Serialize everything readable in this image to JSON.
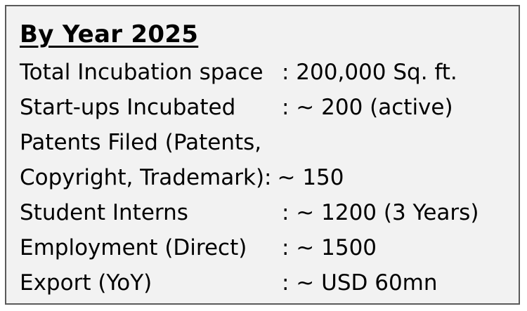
{
  "heading": "By Year 2025",
  "rows": [
    {
      "label": "Total Incubation space",
      "value": ": 200,000 Sq. ft."
    },
    {
      "label": "Start-ups Incubated",
      "value": ": ~ 200 (active)"
    },
    {
      "label": "Patents Filed (Patents,",
      "value": ""
    },
    {
      "label": "Copyright, Trademark):",
      "value": "~ 150"
    },
    {
      "label": "Student Interns",
      "value": ": ~ 1200 (3 Years)"
    },
    {
      "label": "Employment (Direct)",
      "value": ": ~ 1500"
    },
    {
      "label": "Export (YoY)",
      "value": ": ~ USD 60mn"
    }
  ]
}
